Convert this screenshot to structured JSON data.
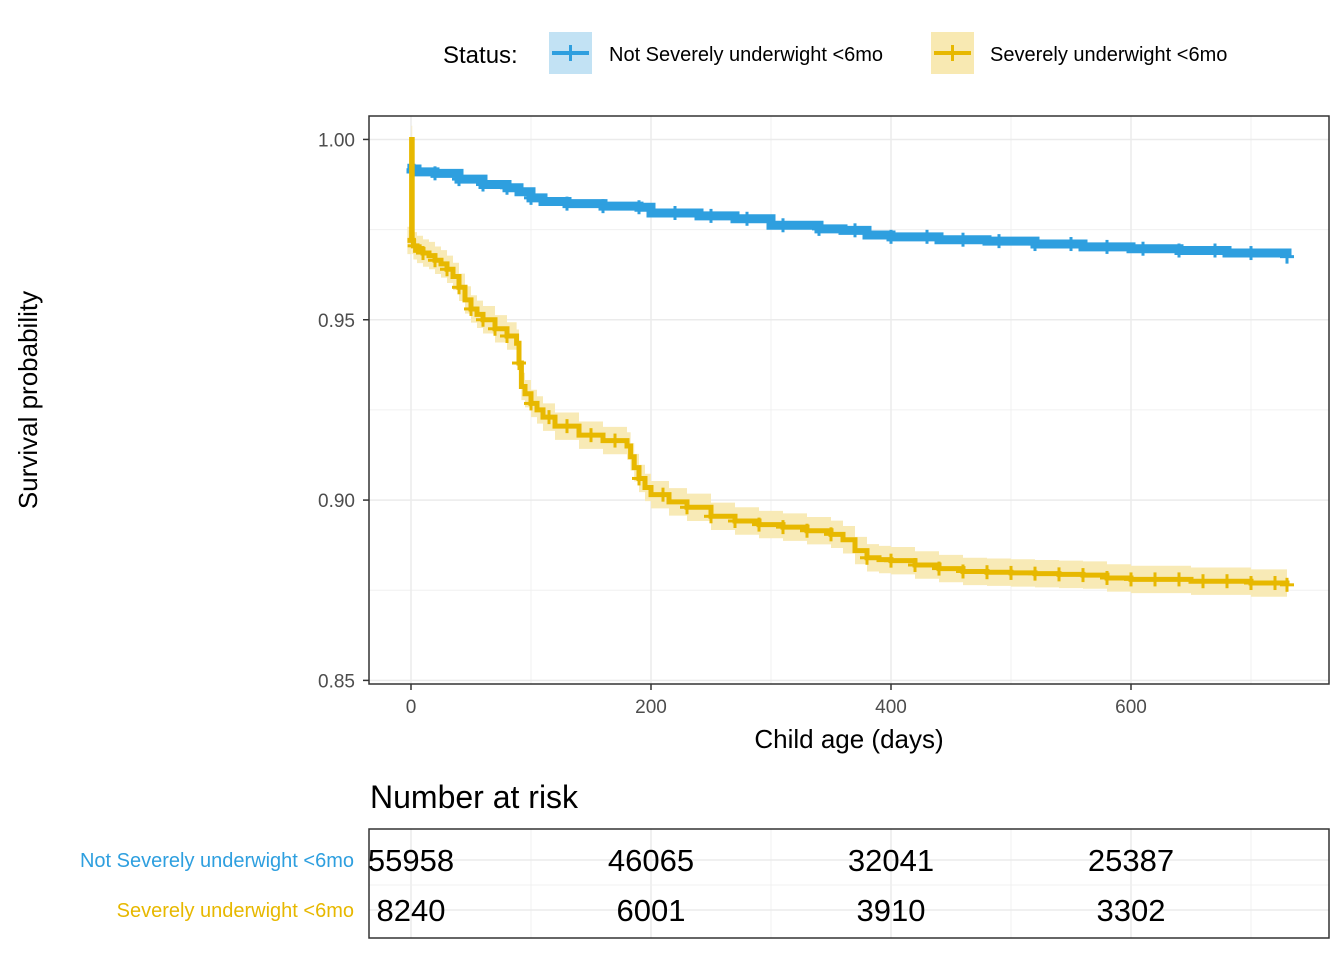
{
  "chart_data": {
    "type": "line",
    "chart_kind": "kaplan-meier survival curve with 95% confidence bands and censoring marks",
    "xlabel": "Child age (days)",
    "ylabel": "Survival probability",
    "xlim": [
      -35,
      765
    ],
    "ylim": [
      0.849,
      1.0065
    ],
    "x_ticks": [
      0,
      200,
      400,
      600
    ],
    "x_tick_labels": [
      "0",
      "200",
      "400",
      "600"
    ],
    "y_ticks": [
      0.85,
      0.9,
      0.95,
      1.0
    ],
    "y_tick_labels": [
      "0.85",
      "0.90",
      "0.95",
      "1.00"
    ],
    "grid": true,
    "legend": {
      "title": "Status:",
      "position": "top",
      "entries": [
        "Not Severely underwight <6mo",
        "Severely underwight <6mo"
      ]
    },
    "series": [
      {
        "name": "Not Severely underwight <6mo",
        "color": "#2E9FDF",
        "fill": "#C2E2F4",
        "x": [
          -3,
          0,
          5,
          20,
          40,
          60,
          80,
          90,
          100,
          110,
          130,
          160,
          190,
          200,
          240,
          270,
          300,
          340,
          360,
          380,
          400,
          440,
          480,
          520,
          560,
          600,
          640,
          680,
          730
        ],
        "y": [
          0.992,
          0.9918,
          0.991,
          0.9906,
          0.989,
          0.9875,
          0.9866,
          0.9855,
          0.9838,
          0.9828,
          0.9822,
          0.9815,
          0.9812,
          0.9796,
          0.9788,
          0.978,
          0.9762,
          0.9752,
          0.9748,
          0.9735,
          0.973,
          0.9722,
          0.9718,
          0.971,
          0.9702,
          0.9697,
          0.9692,
          0.9685,
          0.9675
        ],
        "ci_halfwidth": 0.0007,
        "censor_x": [
          20,
          40,
          60,
          80,
          100,
          130,
          160,
          190,
          220,
          250,
          280,
          310,
          340,
          370,
          400,
          430,
          460,
          490,
          520,
          550,
          580,
          610,
          640,
          670,
          700,
          730
        ]
      },
      {
        "name": "Severely underwight <6mo",
        "color": "#E7B800",
        "fill": "#F8E9B2",
        "x": [
          -3,
          0,
          0.5,
          1,
          2,
          5,
          10,
          15,
          20,
          25,
          30,
          35,
          40,
          45,
          50,
          55,
          60,
          70,
          80,
          88,
          90,
          92,
          95,
          100,
          105,
          110,
          120,
          140,
          160,
          180,
          183,
          186,
          190,
          195,
          200,
          215,
          230,
          250,
          270,
          290,
          310,
          330,
          350,
          360,
          370,
          380,
          390,
          400,
          420,
          440,
          460,
          480,
          500,
          520,
          540,
          560,
          580,
          600,
          650,
          700,
          730
        ],
        "y": [
          0.972,
          0.972,
          1.0,
          0.972,
          0.9705,
          0.9695,
          0.9685,
          0.9678,
          0.9665,
          0.9655,
          0.964,
          0.962,
          0.959,
          0.9555,
          0.953,
          0.9515,
          0.95,
          0.9475,
          0.9455,
          0.9435,
          0.938,
          0.9315,
          0.9295,
          0.9268,
          0.925,
          0.923,
          0.9205,
          0.918,
          0.9165,
          0.915,
          0.912,
          0.909,
          0.906,
          0.9035,
          0.9015,
          0.8995,
          0.898,
          0.8955,
          0.8942,
          0.8932,
          0.8925,
          0.8915,
          0.8905,
          0.889,
          0.886,
          0.884,
          0.8835,
          0.8832,
          0.882,
          0.881,
          0.8802,
          0.88,
          0.8798,
          0.8796,
          0.8794,
          0.8792,
          0.8784,
          0.878,
          0.8775,
          0.877,
          0.8765
        ],
        "ci_halfwidth": 0.0038,
        "censor_x": [
          3,
          10,
          20,
          30,
          40,
          50,
          60,
          70,
          80,
          90,
          100,
          115,
          130,
          150,
          170,
          190,
          210,
          230,
          250,
          270,
          290,
          310,
          330,
          350,
          380,
          400,
          420,
          440,
          460,
          480,
          500,
          520,
          540,
          560,
          580,
          600,
          620,
          640,
          660,
          680,
          700,
          720,
          730
        ]
      }
    ],
    "risk_table": {
      "title": "Number at risk",
      "rows": [
        {
          "label": "Not Severely underwight <6mo",
          "color": "#2E9FDF",
          "values": [
            "55958",
            "46065",
            "32041",
            "25387"
          ]
        },
        {
          "label": "Severely underwight <6mo",
          "color": "#E7B800",
          "values": [
            "8240",
            "6001",
            "3910",
            "3302"
          ]
        }
      ],
      "times": [
        0,
        200,
        400,
        600
      ]
    }
  }
}
